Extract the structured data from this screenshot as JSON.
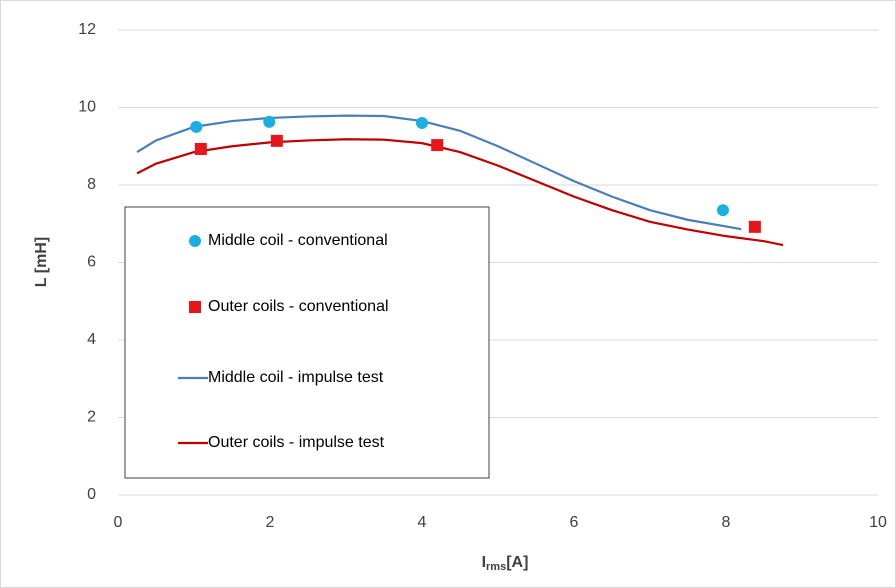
{
  "chart_data": {
    "type": "scatter",
    "ylabel": "L [mH]",
    "xlabel_parts": [
      "I",
      "rms",
      "[A]"
    ],
    "xlim": [
      0,
      10
    ],
    "xticks": [
      0,
      2,
      4,
      6,
      8,
      10
    ],
    "ylim": [
      0,
      12
    ],
    "yticks": [
      0,
      2,
      4,
      6,
      8,
      10,
      12
    ],
    "grid": true,
    "legend": "lower left",
    "series": [
      {
        "name": "Middle coil - conventional",
        "mode": "markers",
        "marker": "circle",
        "color": "#1aaee5",
        "x": [
          1.03,
          1.99,
          4.0,
          7.96
        ],
        "values": [
          9.5,
          9.63,
          9.6,
          7.35
        ]
      },
      {
        "name": "Outer coils - conventional",
        "mode": "markers",
        "marker": "square",
        "color": "#e8161b",
        "x": [
          1.09,
          2.09,
          4.2,
          8.38
        ],
        "values": [
          8.93,
          9.14,
          9.03,
          6.92
        ]
      },
      {
        "name": "Middle coil - impulse test",
        "mode": "line",
        "color": "#4a7ebb",
        "x": [
          0.25,
          0.5,
          1,
          1.5,
          2,
          2.5,
          3,
          3.5,
          4,
          4.5,
          5,
          5.5,
          6,
          6.5,
          7,
          7.5,
          8,
          8.2
        ],
        "values": [
          8.85,
          9.15,
          9.5,
          9.65,
          9.73,
          9.77,
          9.79,
          9.78,
          9.65,
          9.4,
          9.0,
          8.55,
          8.1,
          7.7,
          7.35,
          7.1,
          6.93,
          6.86
        ]
      },
      {
        "name": "Outer coils - impulse test",
        "mode": "line",
        "color": "#c00000",
        "x": [
          0.25,
          0.5,
          1,
          1.5,
          2,
          2.5,
          3,
          3.5,
          4,
          4.5,
          5,
          5.5,
          6,
          6.5,
          7,
          7.5,
          8,
          8.5,
          8.75
        ],
        "values": [
          8.3,
          8.55,
          8.85,
          9.0,
          9.1,
          9.15,
          9.18,
          9.17,
          9.08,
          8.85,
          8.5,
          8.1,
          7.7,
          7.35,
          7.05,
          6.85,
          6.68,
          6.55,
          6.45
        ]
      }
    ]
  }
}
